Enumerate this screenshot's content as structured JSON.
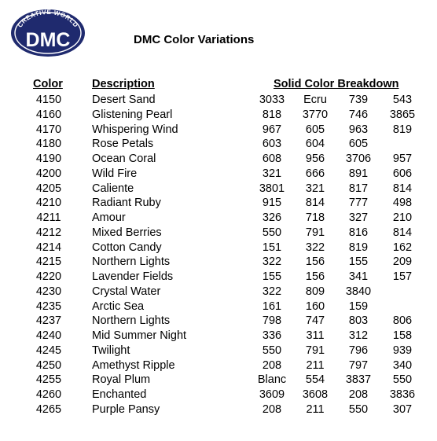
{
  "logo": {
    "top_text": "CREATIVE WORLD",
    "wordmark": "DMC",
    "color": "#1f2a6e"
  },
  "title": "DMC Color Variations",
  "headers": {
    "color": "Color",
    "description": "Description",
    "breakdown": "Solid Color Breakdown"
  },
  "rows": [
    {
      "code": "4150",
      "desc": "Desert Sand",
      "s": [
        "3033",
        "Ecru",
        "739",
        "543"
      ]
    },
    {
      "code": "4160",
      "desc": "Glistening Pearl",
      "s": [
        "818",
        "3770",
        "746",
        "3865"
      ]
    },
    {
      "code": "4170",
      "desc": "Whispering Wind",
      "s": [
        "967",
        "605",
        "963",
        "819"
      ]
    },
    {
      "code": "4180",
      "desc": "Rose Petals",
      "s": [
        "603",
        "604",
        "605",
        ""
      ]
    },
    {
      "code": "4190",
      "desc": "Ocean Coral",
      "s": [
        "608",
        "956",
        "3706",
        "957"
      ]
    },
    {
      "code": "4200",
      "desc": "Wild Fire",
      "s": [
        "321",
        "666",
        "891",
        "606"
      ]
    },
    {
      "code": "4205",
      "desc": "Caliente",
      "s": [
        "3801",
        "321",
        "817",
        "814"
      ]
    },
    {
      "code": "4210",
      "desc": "Radiant Ruby",
      "s": [
        "915",
        "814",
        "777",
        "498"
      ]
    },
    {
      "code": "4211",
      "desc": "Amour",
      "s": [
        "326",
        "718",
        "327",
        "210"
      ]
    },
    {
      "code": "4212",
      "desc": "Mixed Berries",
      "s": [
        "550",
        "791",
        "816",
        "814"
      ]
    },
    {
      "code": "4214",
      "desc": "Cotton Candy",
      "s": [
        "151",
        "322",
        "819",
        "162"
      ]
    },
    {
      "code": "4215",
      "desc": "Northern Lights",
      "s": [
        "322",
        "156",
        "155",
        "209"
      ]
    },
    {
      "code": "4220",
      "desc": "Lavender Fields",
      "s": [
        "155",
        "156",
        "341",
        "157"
      ]
    },
    {
      "code": "4230",
      "desc": "Crystal Water",
      "s": [
        "322",
        "809",
        "3840",
        ""
      ]
    },
    {
      "code": "4235",
      "desc": "Arctic Sea",
      "s": [
        "161",
        "160",
        "159",
        ""
      ]
    },
    {
      "code": "4237",
      "desc": "Northern Lights",
      "s": [
        "798",
        "747",
        "803",
        "806"
      ]
    },
    {
      "code": "4240",
      "desc": "Mid Summer Night",
      "s": [
        "336",
        "311",
        "312",
        "158"
      ]
    },
    {
      "code": "4245",
      "desc": "Twilight",
      "s": [
        "550",
        "791",
        "796",
        "939"
      ]
    },
    {
      "code": "4250",
      "desc": "Amethyst Ripple",
      "s": [
        "208",
        "211",
        "797",
        "340"
      ]
    },
    {
      "code": "4255",
      "desc": "Royal Plum",
      "s": [
        "Blanc",
        "554",
        "3837",
        "550"
      ]
    },
    {
      "code": "4260",
      "desc": "Enchanted",
      "s": [
        "3609",
        "3608",
        "208",
        "3836"
      ]
    },
    {
      "code": "4265",
      "desc": "Purple Pansy",
      "s": [
        "208",
        "211",
        "550",
        "307"
      ]
    }
  ]
}
